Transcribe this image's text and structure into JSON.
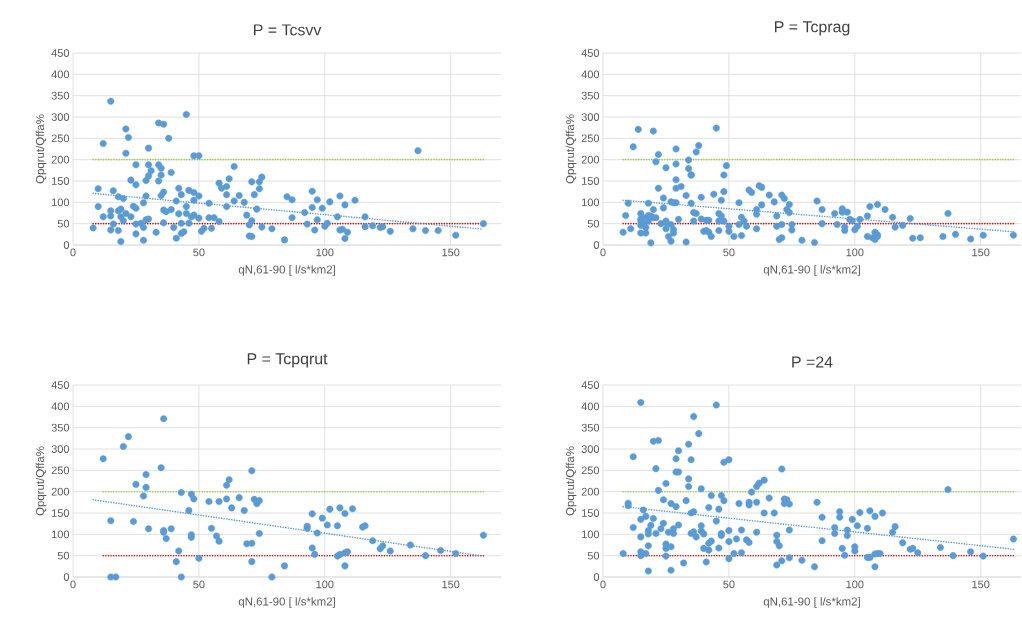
{
  "chart_data": [
    {
      "type": "scatter",
      "marker": "circle",
      "title": "P = Tcsvv",
      "xlabel": "qN,61-90 [ l/s*km2]",
      "ylabel": "Qpqrut/Qffa%",
      "xlim": [
        0,
        170
      ],
      "ylim": [
        0,
        450
      ],
      "xticks": [
        0,
        50,
        100,
        150
      ],
      "yticks": [
        0,
        50,
        100,
        150,
        200,
        250,
        300,
        350,
        400,
        450
      ],
      "grid": true,
      "ref_lines": [
        {
          "axis": "y",
          "value": 200,
          "color": "#92d050",
          "line_style": "dotted"
        },
        {
          "axis": "y",
          "value": 50,
          "color": "#e00000",
          "line_style": "dotted"
        }
      ],
      "series": [
        {
          "type": "scatter",
          "color": "#5b9bd5",
          "x": [
            8,
            10,
            10,
            12,
            12,
            15,
            16,
            15,
            15,
            16,
            15,
            18,
            18,
            18,
            19,
            19,
            19,
            20,
            20,
            21,
            21,
            21,
            22,
            23,
            23,
            24,
            25,
            25,
            25,
            25,
            25,
            27,
            28,
            28,
            28,
            29,
            29,
            29,
            30,
            30,
            30,
            30,
            31,
            33,
            34,
            34,
            34,
            35,
            35,
            35,
            36,
            36,
            36,
            36,
            37,
            38,
            39,
            39,
            40,
            41,
            41,
            42,
            42,
            43,
            43,
            43,
            44,
            45,
            45,
            45,
            46,
            46,
            47,
            48,
            48,
            48,
            48,
            50,
            50,
            50,
            51,
            52,
            54,
            54,
            55,
            56,
            58,
            58,
            59,
            61,
            61,
            61,
            62,
            64,
            64,
            66,
            68,
            69,
            70,
            70,
            71,
            71,
            71,
            72,
            73,
            74,
            74,
            75,
            75,
            79,
            84,
            85,
            87,
            87,
            92,
            93,
            95,
            95,
            96,
            97,
            97,
            99,
            100,
            101,
            102,
            105,
            106,
            106,
            107,
            108,
            108,
            109,
            112,
            116,
            116,
            119,
            122,
            123,
            126,
            135,
            137,
            140,
            145,
            152,
            163
          ],
          "values": [
            40,
            90,
            132,
            66,
            238,
            337,
            127,
            68,
            80,
            49,
            35,
            34,
            113,
            80,
            66,
            8,
            84,
            57,
            109,
            272,
            74,
            215,
            252,
            152,
            66,
            91,
            141,
            49,
            86,
            188,
            26,
            51,
            11,
            99,
            41,
            151,
            115,
            59,
            162,
            227,
            188,
            61,
            174,
            30,
            150,
            286,
            188,
            180,
            164,
            116,
            52,
            124,
            283,
            82,
            78,
            250,
            170,
            83,
            41,
            103,
            16,
            133,
            73,
            27,
            51,
            118,
            31,
            90,
            306,
            74,
            51,
            128,
            66,
            105,
            123,
            209,
            70,
            209,
            63,
            115,
            32,
            39,
            64,
            98,
            39,
            64,
            55,
            145,
            133,
            137,
            90,
            118,
            155,
            103,
            184,
            116,
            100,
            70,
            21,
            47,
            57,
            148,
            20,
            118,
            84,
            132,
            148,
            159,
            42,
            38,
            12,
            113,
            106,
            64,
            76,
            49,
            126,
            88,
            35,
            106,
            59,
            86,
            44,
            51,
            101,
            66,
            35,
            115,
            37,
            15,
            94,
            30,
            105,
            66,
            43,
            45,
            41,
            43,
            32,
            38,
            221,
            34,
            34,
            23,
            50
          ]
        },
        {
          "type": "line",
          "color": "#5b9bd5",
          "marker": "none",
          "line_style": "dotted",
          "x": [
            8,
            163
          ],
          "values": [
            121,
            37
          ]
        }
      ]
    },
    {
      "type": "scatter",
      "marker": "circle",
      "title": "P = Tcprag",
      "xlabel": "qN,61-90 [ l/s*km2]",
      "ylabel": "Qpqrut/Qffa%",
      "xlim": [
        0,
        166
      ],
      "ylim": [
        0,
        450
      ],
      "xticks": [
        0,
        50,
        100,
        150
      ],
      "yticks": [
        0,
        50,
        100,
        150,
        200,
        250,
        300,
        350,
        400,
        450
      ],
      "grid": true,
      "ref_lines": [
        {
          "axis": "y",
          "value": 200,
          "color": "#92d050",
          "line_style": "dotted"
        },
        {
          "axis": "y",
          "value": 50,
          "color": "#e00000",
          "line_style": "dotted"
        }
      ],
      "series": [
        {
          "type": "scatter",
          "color": "#5b9bd5",
          "x": [
            8,
            9,
            10,
            11,
            12,
            14,
            15,
            15,
            15,
            15,
            15,
            16,
            16,
            17,
            17,
            18,
            18,
            18,
            19,
            19,
            20,
            20,
            20,
            21,
            21,
            22,
            22,
            23,
            24,
            24,
            25,
            25,
            25,
            25,
            26,
            27,
            27,
            27,
            28,
            28,
            28,
            29,
            29,
            29,
            29,
            29,
            30,
            31,
            33,
            33,
            34,
            34,
            35,
            35,
            35,
            36,
            36,
            37,
            37,
            38,
            39,
            39,
            40,
            41,
            41,
            42,
            42,
            43,
            44,
            45,
            46,
            46,
            46,
            47,
            47,
            48,
            48,
            48,
            49,
            50,
            50,
            52,
            54,
            54,
            55,
            55,
            56,
            57,
            58,
            59,
            61,
            61,
            61,
            62,
            63,
            63,
            66,
            68,
            69,
            69,
            70,
            71,
            71,
            71,
            72,
            73,
            74,
            74,
            75,
            75,
            79,
            84,
            85,
            87,
            87,
            92,
            93,
            95,
            95,
            96,
            96,
            97,
            98,
            99,
            100,
            101,
            102,
            105,
            105,
            106,
            107,
            108,
            108,
            109,
            109,
            109,
            112,
            115,
            116,
            119,
            122,
            123,
            126,
            135,
            137,
            140,
            146,
            151,
            163
          ],
          "values": [
            30,
            69,
            98,
            38,
            230,
            271,
            56,
            74,
            61,
            46,
            28,
            50,
            64,
            41,
            28,
            98,
            69,
            56,
            5,
            68,
            64,
            83,
            267,
            64,
            195,
            212,
            133,
            50,
            87,
            110,
            52,
            56,
            38,
            181,
            20,
            48,
            9,
            101,
            99,
            36,
            28,
            153,
            99,
            225,
            190,
            133,
            60,
            137,
            7,
            116,
            199,
            179,
            164,
            98,
            164,
            56,
            76,
            218,
            74,
            233,
            112,
            61,
            32,
            58,
            34,
            58,
            30,
            20,
            119,
            274,
            74,
            34,
            56,
            105,
            68,
            164,
            56,
            125,
            186,
            44,
            32,
            20,
            99,
            48,
            22,
            65,
            56,
            44,
            129,
            123,
            72,
            38,
            83,
            139,
            135,
            94,
            117,
            101,
            68,
            44,
            13,
            48,
            17,
            117,
            109,
            83,
            76,
            95,
            48,
            35,
            11,
            6,
            103,
            83,
            50,
            74,
            48,
            85,
            77,
            42,
            34,
            77,
            60,
            57,
            36,
            44,
            60,
            68,
            20,
            90,
            17,
            30,
            13,
            95,
            24,
            20,
            83,
            65,
            42,
            46,
            62,
            16,
            17,
            20,
            74,
            25,
            14,
            23,
            23
          ]
        },
        {
          "type": "line",
          "color": "#5b9bd5",
          "marker": "none",
          "line_style": "dotted",
          "x": [
            8,
            163
          ],
          "values": [
            105,
            31
          ]
        }
      ]
    },
    {
      "type": "scatter",
      "marker": "circle",
      "title": "P = Tcpqrut",
      "xlabel": "qN,61-90 [ l/s*km2]",
      "ylabel": "Qpqrut/Qffa%",
      "xlim": [
        0,
        170
      ],
      "ylim": [
        0,
        450
      ],
      "xticks": [
        0,
        50,
        100,
        150
      ],
      "yticks": [
        0,
        50,
        100,
        150,
        200,
        250,
        300,
        350,
        400,
        450
      ],
      "grid": true,
      "ref_lines": [
        {
          "axis": "y",
          "value": 200,
          "color": "#92d050",
          "line_style": "dotted"
        },
        {
          "axis": "y",
          "value": 50,
          "color": "#e00000",
          "line_style": "dotted"
        }
      ],
      "series": [
        {
          "type": "scatter",
          "color": "#5b9bd5",
          "x": [
            12,
            15,
            15,
            17,
            20,
            22,
            24,
            25,
            28,
            29,
            29,
            30,
            35,
            36,
            36,
            36,
            37,
            39,
            41,
            42,
            43,
            43,
            46,
            47,
            48,
            47,
            47,
            50,
            54,
            55,
            57,
            58,
            58,
            61,
            61,
            62,
            63,
            66,
            68,
            69,
            71,
            71,
            71,
            72,
            73,
            74,
            74,
            79,
            84,
            93,
            93,
            95,
            95,
            96,
            97,
            99,
            101,
            102,
            105,
            105,
            106,
            106,
            108,
            108,
            108,
            109,
            111,
            115,
            116,
            119,
            122,
            123,
            126,
            134,
            140,
            146,
            152,
            163
          ],
          "values": [
            277,
            132,
            0,
            0,
            306,
            329,
            130,
            217,
            190,
            240,
            210,
            113,
            256,
            105,
            109,
            371,
            90,
            113,
            36,
            61,
            198,
            0,
            156,
            194,
            183,
            99,
            93,
            44,
            177,
            114,
            96,
            84,
            177,
            215,
            183,
            228,
            162,
            186,
            156,
            78,
            249,
            79,
            36,
            182,
            172,
            179,
            102,
            0,
            26,
            114,
            119,
            148,
            68,
            53,
            103,
            138,
            122,
            159,
            49,
            120,
            162,
            53,
            26,
            57,
            149,
            59,
            160,
            117,
            120,
            85,
            66,
            73,
            61,
            75,
            50,
            62,
            55,
            98
          ]
        },
        {
          "type": "line",
          "color": "#5b9bd5",
          "marker": "none",
          "line_style": "dotted",
          "x": [
            8,
            163
          ],
          "values": [
            181,
            49
          ]
        }
      ]
    },
    {
      "type": "scatter",
      "marker": "circle",
      "title": "P =24",
      "xlabel": "qN,61-90 [ l/s*km2]",
      "ylabel": "Qpqrut/Qffa%",
      "xlim": [
        0,
        166
      ],
      "ylim": [
        0,
        450
      ],
      "xticks": [
        0,
        50,
        100,
        150
      ],
      "yticks": [
        0,
        50,
        100,
        150,
        200,
        250,
        300,
        350,
        400,
        450
      ],
      "grid": true,
      "ref_lines": [
        {
          "axis": "y",
          "value": 200,
          "color": "#92d050",
          "line_style": "dotted"
        },
        {
          "axis": "y",
          "value": 50,
          "color": "#e00000",
          "line_style": "dotted"
        }
      ],
      "series": [
        {
          "type": "scatter",
          "color": "#5b9bd5",
          "x": [
            8,
            10,
            10,
            12,
            12,
            15,
            15,
            15,
            15,
            15,
            16,
            17,
            17,
            18,
            18,
            18,
            18,
            19,
            20,
            20,
            21,
            21,
            22,
            22,
            23,
            24,
            24,
            25,
            25,
            25,
            25,
            26,
            27,
            27,
            27,
            28,
            28,
            29,
            29,
            29,
            30,
            30,
            30,
            32,
            34,
            33,
            34,
            34,
            35,
            35,
            35,
            36,
            36,
            36,
            37,
            38,
            39,
            39,
            39,
            40,
            40,
            41,
            42,
            42,
            42,
            43,
            43,
            45,
            45,
            46,
            46,
            47,
            47,
            47,
            48,
            48,
            50,
            50,
            50,
            50,
            52,
            53,
            54,
            55,
            55,
            57,
            58,
            58,
            58,
            59,
            61,
            61,
            61,
            62,
            64,
            64,
            66,
            68,
            69,
            69,
            69,
            70,
            71,
            71,
            72,
            72,
            73,
            74,
            74,
            74,
            79,
            84,
            85,
            87,
            87,
            92,
            92,
            94,
            94,
            95,
            96,
            97,
            97,
            99,
            100,
            100,
            101,
            102,
            105,
            105,
            106,
            106,
            108,
            108,
            108,
            109,
            110,
            111,
            115,
            116,
            119,
            122,
            123,
            125,
            134,
            137,
            139,
            146,
            151,
            163
          ],
          "values": [
            55,
            173,
            167,
            116,
            282,
            409,
            135,
            94,
            59,
            50,
            157,
            55,
            142,
            101,
            109,
            73,
            14,
            121,
            137,
            318,
            102,
            254,
            320,
            203,
            113,
            126,
            181,
            77,
            67,
            49,
            219,
            105,
            16,
            71,
            172,
            102,
            113,
            165,
            246,
            277,
            296,
            246,
            122,
            33,
            311,
            179,
            230,
            212,
            150,
            275,
            102,
            153,
            376,
            106,
            94,
            336,
            207,
            120,
            108,
            101,
            67,
            35,
            163,
            79,
            63,
            84,
            191,
            403,
            131,
            159,
            68,
            97,
            102,
            191,
            179,
            269,
            275,
            109,
            83,
            43,
            55,
            89,
            172,
            57,
            110,
            87,
            81,
            169,
            175,
            199,
            212,
            105,
            175,
            220,
            227,
            150,
            185,
            150,
            98,
            83,
            28,
            73,
            38,
            253,
            183,
            172,
            181,
            171,
            110,
            45,
            39,
            24,
            175,
            140,
            85,
            116,
            102,
            153,
            140,
            67,
            51,
            110,
            97,
            135,
            71,
            61,
            120,
            151,
            114,
            46,
            46,
            155,
            54,
            24,
            142,
            55,
            55,
            150,
            105,
            118,
            80,
            65,
            67,
            57,
            69,
            205,
            50,
            59,
            49,
            89
          ]
        },
        {
          "type": "line",
          "color": "#5b9bd5",
          "marker": "none",
          "line_style": "dotted",
          "x": [
            8,
            163
          ],
          "values": [
            165,
            65
          ]
        }
      ]
    }
  ]
}
